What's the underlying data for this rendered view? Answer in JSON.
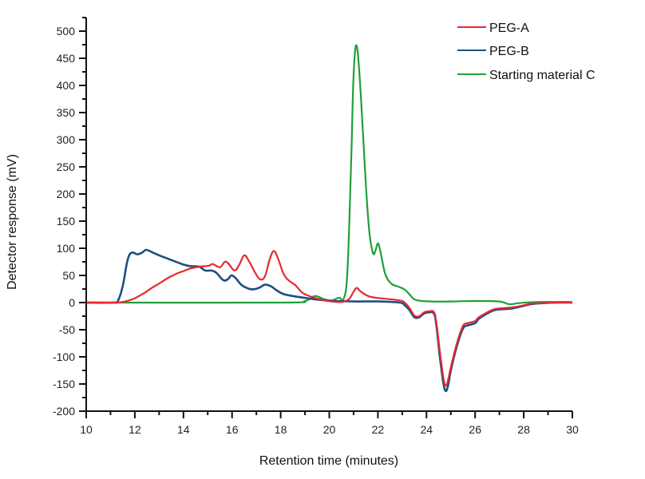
{
  "chart_data": {
    "type": "line",
    "title": "",
    "xlabel": "Retention time (minutes)",
    "ylabel": "Detector response (mV)",
    "xlim": [
      10,
      30
    ],
    "ylim": [
      -200,
      520
    ],
    "x_ticks": [
      10,
      12,
      14,
      16,
      18,
      20,
      22,
      24,
      26,
      28,
      30
    ],
    "x_tick_labels": [
      "10",
      "12",
      "14",
      "16",
      "18",
      "20",
      "22",
      "24",
      "26",
      "28",
      "30"
    ],
    "y_ticks": [
      -200,
      -150,
      -100,
      -50,
      0,
      50,
      100,
      150,
      200,
      250,
      300,
      350,
      400,
      450,
      500
    ],
    "y_tick_labels": [
      "-200",
      "-150",
      "-100",
      "-50",
      "0",
      "50",
      "100",
      "150",
      "200",
      "250",
      "300",
      "350",
      "400",
      "450",
      "500"
    ],
    "grid": false,
    "legend_position": "top-right",
    "series": [
      {
        "name": "PEG-A",
        "color": "#e8282f",
        "x": [
          10,
          11.2,
          11.6,
          12.0,
          12.4,
          12.7,
          13.0,
          13.35,
          13.7,
          14.0,
          14.3,
          14.65,
          15.05,
          15.2,
          15.5,
          15.7,
          15.85,
          16.1,
          16.3,
          16.5,
          16.7,
          16.95,
          17.15,
          17.35,
          17.55,
          17.72,
          17.9,
          18.1,
          18.3,
          18.6,
          18.9,
          19.3,
          19.7,
          20.1,
          20.5,
          20.8,
          21.0,
          21.13,
          21.3,
          21.6,
          21.9,
          22.3,
          22.9,
          23.1,
          23.3,
          23.5,
          23.7,
          23.9,
          24.1,
          24.3,
          24.4,
          24.55,
          24.7,
          24.8,
          24.9,
          25.0,
          25.25,
          25.5,
          25.7,
          26.0,
          26.15,
          26.5,
          26.8,
          27.2,
          27.5,
          28.0,
          28.3,
          28.8,
          29.4,
          30
        ],
        "y": [
          0,
          0,
          2,
          8,
          18,
          27,
          35,
          45,
          53,
          58,
          63,
          66,
          68,
          71,
          65,
          75,
          72,
          59,
          70,
          87,
          76,
          55,
          43,
          48,
          80,
          95,
          80,
          55,
          42,
          32,
          18,
          10,
          5,
          2,
          1,
          6,
          20,
          27,
          20,
          12,
          9,
          7,
          4,
          0,
          -10,
          -24,
          -25,
          -18,
          -16,
          -17,
          -35,
          -90,
          -140,
          -153,
          -140,
          -119,
          -75,
          -43,
          -38,
          -34,
          -27,
          -18,
          -12,
          -10,
          -9,
          -5,
          -2,
          -1,
          0,
          0
        ]
      },
      {
        "name": "PEG-B",
        "color": "#1f4e80",
        "x": [
          10,
          11.1,
          11.3,
          11.5,
          11.7,
          11.87,
          12.1,
          12.3,
          12.46,
          12.7,
          13.0,
          13.35,
          13.7,
          14.0,
          14.3,
          14.65,
          14.9,
          15.15,
          15.35,
          15.65,
          15.85,
          15.97,
          16.15,
          16.4,
          16.73,
          16.95,
          17.15,
          17.36,
          17.6,
          17.85,
          18.1,
          18.5,
          19.1,
          19.6,
          20.2,
          21.0,
          22.0,
          22.9,
          23.1,
          23.3,
          23.5,
          23.7,
          23.9,
          24.1,
          24.3,
          24.4,
          24.55,
          24.7,
          24.8,
          24.9,
          25.0,
          25.25,
          25.5,
          25.7,
          26.0,
          26.15,
          26.5,
          26.8,
          27.2,
          27.5,
          28.0,
          28.3,
          28.8,
          29.4,
          30
        ],
        "y": [
          0,
          0,
          3,
          30,
          78,
          92,
          89,
          92,
          97,
          93,
          87,
          81,
          75,
          70,
          67,
          66,
          59,
          59,
          55,
          41,
          44,
          50,
          45,
          32,
          25,
          25,
          28,
          33,
          30,
          22,
          16,
          12,
          8,
          5,
          3,
          2,
          2,
          0,
          -5,
          -14,
          -27,
          -27,
          -20,
          -18,
          -20,
          -40,
          -100,
          -150,
          -163,
          -150,
          -125,
          -80,
          -48,
          -42,
          -38,
          -30,
          -20,
          -14,
          -12,
          -11,
          -6,
          -3,
          -1,
          0,
          0
        ]
      },
      {
        "name": "Starting material C",
        "color": "#1fa03a",
        "x": [
          10,
          18.0,
          19.0,
          19.4,
          19.8,
          20.1,
          20.4,
          20.6,
          20.75,
          20.9,
          21.0,
          21.13,
          21.3,
          21.5,
          21.65,
          21.8,
          21.9,
          22.0,
          22.1,
          22.3,
          22.55,
          22.8,
          23.1,
          23.3,
          23.5,
          23.8,
          24.2,
          25.0,
          26.0,
          27.0,
          27.4,
          27.8,
          28.5,
          30
        ],
        "y": [
          0,
          0,
          3,
          12,
          6,
          4,
          9,
          8,
          60,
          260,
          420,
          473,
          380,
          220,
          130,
          91,
          96,
          109,
          95,
          53,
          35,
          30,
          24,
          15,
          6,
          3,
          2,
          2,
          3,
          2,
          -3,
          -1,
          1,
          1
        ]
      }
    ]
  }
}
